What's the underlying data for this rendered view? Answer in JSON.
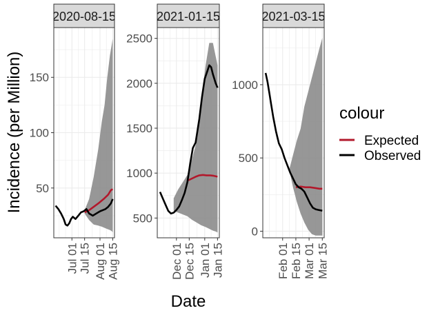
{
  "chart_data": [
    {
      "type": "line",
      "facet": "2020-08-15",
      "ylim": [
        5,
        195
      ],
      "yticks": [
        50,
        100,
        150
      ],
      "xlim": [
        "2020-06-11",
        "2020-08-17"
      ],
      "xticks": [
        {
          "date": "2020-07-01",
          "label": "Jul 01"
        },
        {
          "date": "2020-07-15",
          "label": "Jul 15"
        },
        {
          "date": "2020-08-01",
          "label": "Aug 01"
        },
        {
          "date": "2020-08-15",
          "label": "Aug 15"
        }
      ],
      "band": {
        "x": [
          "2020-07-15",
          "2020-07-20",
          "2020-07-25",
          "2020-07-30",
          "2020-08-03",
          "2020-08-06",
          "2020-08-09",
          "2020-08-12",
          "2020-08-14",
          "2020-08-15"
        ],
        "upper": [
          30,
          40,
          60,
          85,
          110,
          125,
          150,
          170,
          180,
          185
        ],
        "lower": [
          27,
          21,
          17,
          16,
          15,
          14,
          13,
          12,
          11,
          10
        ]
      },
      "series": [
        {
          "name": "Expected",
          "color": "#b2182b",
          "x": [
            "2020-07-15",
            "2020-07-20",
            "2020-07-25",
            "2020-07-30",
            "2020-08-05",
            "2020-08-10",
            "2020-08-13",
            "2020-08-15"
          ],
          "y": [
            28,
            30,
            33,
            36,
            40,
            44,
            48,
            49
          ]
        },
        {
          "name": "Observed",
          "color": "#000000",
          "x": [
            "2020-06-13",
            "2020-06-16",
            "2020-06-19",
            "2020-06-22",
            "2020-06-24",
            "2020-06-26",
            "2020-06-28",
            "2020-06-30",
            "2020-07-02",
            "2020-07-05",
            "2020-07-08",
            "2020-07-11",
            "2020-07-14",
            "2020-07-17",
            "2020-07-20",
            "2020-07-24",
            "2020-07-28",
            "2020-08-01",
            "2020-08-04",
            "2020-08-07",
            "2020-08-10",
            "2020-08-13",
            "2020-08-15"
          ],
          "y": [
            34,
            31,
            27,
            22,
            17,
            16,
            18,
            22,
            24,
            22,
            25,
            28,
            29,
            31,
            27,
            25,
            27,
            29,
            30,
            31,
            33,
            36,
            40
          ]
        }
      ]
    },
    {
      "type": "line",
      "facet": "2021-01-15",
      "ylim": [
        280,
        2620
      ],
      "yticks": [
        500,
        1000,
        1500,
        2000,
        2500
      ],
      "xlim": [
        "2020-11-10",
        "2021-01-17"
      ],
      "xticks": [
        {
          "date": "2020-12-01",
          "label": "Dec 01"
        },
        {
          "date": "2020-12-15",
          "label": "Dec 15"
        },
        {
          "date": "2021-01-01",
          "label": "Jan 01"
        },
        {
          "date": "2021-01-15",
          "label": "Jan 15"
        }
      ],
      "band": {
        "x": [
          "2020-11-28",
          "2020-12-03",
          "2020-12-08",
          "2020-12-13",
          "2020-12-18",
          "2020-12-23",
          "2020-12-28",
          "2021-01-02",
          "2021-01-06",
          "2021-01-10",
          "2021-01-13",
          "2021-01-15"
        ],
        "upper": [
          720,
          820,
          900,
          980,
          1150,
          1350,
          1800,
          2200,
          2450,
          2450,
          2300,
          2200
        ],
        "lower": [
          580,
          560,
          540,
          520,
          480,
          450,
          420,
          400,
          380,
          360,
          350,
          340
        ]
      },
      "series": [
        {
          "name": "Expected",
          "color": "#b2182b",
          "x": [
            "2020-12-14",
            "2020-12-18",
            "2020-12-22",
            "2020-12-26",
            "2020-12-30",
            "2021-01-03",
            "2021-01-07",
            "2021-01-11",
            "2021-01-15"
          ],
          "y": [
            920,
            940,
            960,
            975,
            980,
            975,
            975,
            970,
            960
          ]
        },
        {
          "name": "Observed",
          "color": "#000000",
          "x": [
            "2020-11-13",
            "2020-11-16",
            "2020-11-19",
            "2020-11-22",
            "2020-11-25",
            "2020-11-28",
            "2020-12-01",
            "2020-12-04",
            "2020-12-07",
            "2020-12-10",
            "2020-12-13",
            "2020-12-16",
            "2020-12-19",
            "2020-12-22",
            "2020-12-26",
            "2020-12-29",
            "2021-01-01",
            "2021-01-04",
            "2021-01-06",
            "2021-01-08",
            "2021-01-10",
            "2021-01-13",
            "2021-01-15"
          ],
          "y": [
            790,
            720,
            650,
            580,
            550,
            560,
            590,
            630,
            700,
            780,
            900,
            1100,
            1280,
            1340,
            1600,
            1850,
            2050,
            2140,
            2200,
            2180,
            2100,
            2000,
            1950
          ]
        }
      ]
    },
    {
      "type": "line",
      "facet": "2021-03-15",
      "ylim": [
        -45,
        1390
      ],
      "yticks": [
        0,
        500,
        1000
      ],
      "xlim": [
        "2021-01-11",
        "2021-03-17"
      ],
      "xticks": [
        {
          "date": "2021-02-01",
          "label": "Feb 01"
        },
        {
          "date": "2021-02-15",
          "label": "Feb 15"
        },
        {
          "date": "2021-03-01",
          "label": "Mar 01"
        },
        {
          "date": "2021-03-15",
          "label": "Mar 15"
        }
      ],
      "band": {
        "x": [
          "2021-02-08",
          "2021-02-12",
          "2021-02-16",
          "2021-02-20",
          "2021-02-24",
          "2021-02-28",
          "2021-03-04",
          "2021-03-08",
          "2021-03-12",
          "2021-03-15"
        ],
        "upper": [
          420,
          520,
          620,
          700,
          850,
          950,
          1050,
          1150,
          1250,
          1320
        ],
        "lower": [
          420,
          300,
          200,
          120,
          60,
          10,
          -20,
          -30,
          -30,
          -30
        ]
      },
      "series": [
        {
          "name": "Expected",
          "color": "#b2182b",
          "x": [
            "2021-02-15",
            "2021-02-20",
            "2021-02-25",
            "2021-03-02",
            "2021-03-07",
            "2021-03-12",
            "2021-03-15"
          ],
          "y": [
            300,
            305,
            300,
            300,
            295,
            290,
            290
          ]
        },
        {
          "name": "Observed",
          "color": "#000000",
          "x": [
            "2021-01-14",
            "2021-01-16",
            "2021-01-18",
            "2021-01-20",
            "2021-01-22",
            "2021-01-25",
            "2021-01-28",
            "2021-01-31",
            "2021-02-03",
            "2021-02-06",
            "2021-02-09",
            "2021-02-12",
            "2021-02-15",
            "2021-02-18",
            "2021-02-21",
            "2021-02-24",
            "2021-02-27",
            "2021-03-02",
            "2021-03-05",
            "2021-03-08",
            "2021-03-11",
            "2021-03-15"
          ],
          "y": [
            1080,
            1020,
            940,
            860,
            780,
            680,
            600,
            560,
            500,
            450,
            400,
            360,
            320,
            300,
            290,
            270,
            230,
            190,
            160,
            150,
            145,
            140
          ]
        }
      ]
    }
  ],
  "strips": [
    "2020-08-15",
    "2021-01-15",
    "2021-03-15"
  ],
  "axes": {
    "xlabel": "Date",
    "ylabel": "Incidence (per Million)"
  },
  "legend": {
    "title": "colour",
    "items": [
      {
        "label": "Expected",
        "color": "#b2182b"
      },
      {
        "label": "Observed",
        "color": "#000000"
      }
    ]
  },
  "colors": {
    "panel_bg": "#ffffff",
    "strip_bg": "#d9d9d9",
    "grid": "#ebebeb",
    "band": "#8c8c8c"
  }
}
